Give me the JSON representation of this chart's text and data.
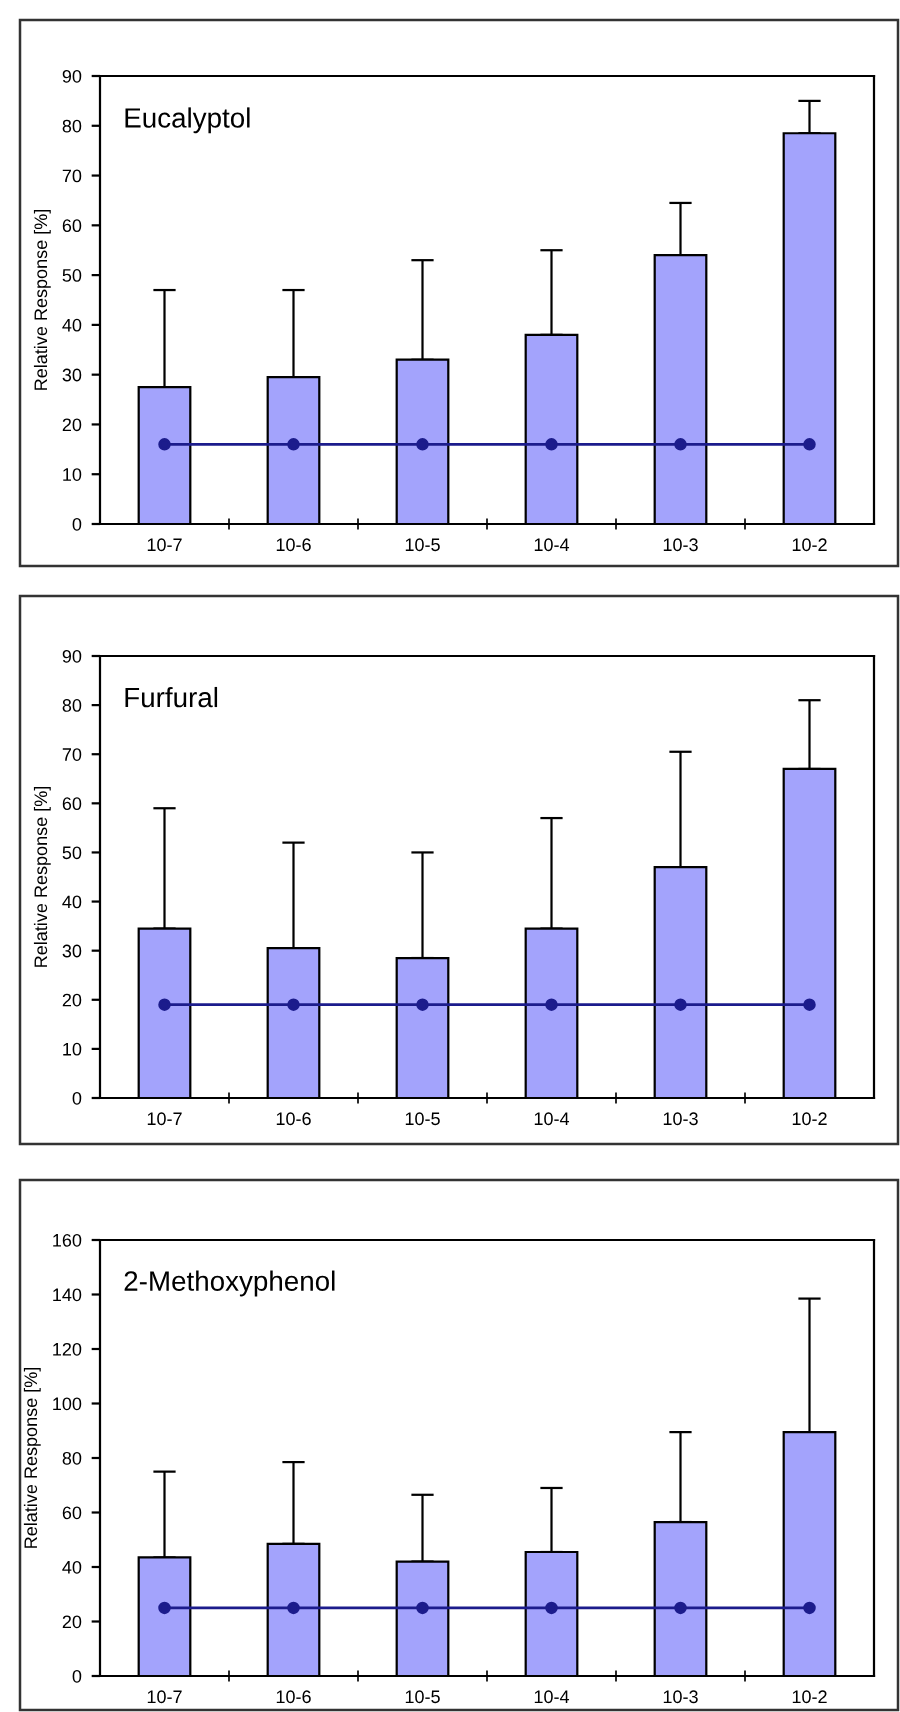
{
  "chart_data": [
    {
      "type": "bar",
      "title": "Eucalyptol",
      "ylabel": "Relative Response [%]",
      "categories": [
        "10-7",
        "10-6",
        "10-5",
        "10-4",
        "10-3",
        "10-2"
      ],
      "ylim": [
        0,
        90
      ],
      "yticks": [
        0,
        10,
        20,
        30,
        40,
        50,
        60,
        70,
        80,
        90
      ],
      "grid": false,
      "legend": false,
      "series": [
        {
          "color": "#a3a3fc",
          "values": [
            27.5,
            29.5,
            33,
            38,
            54,
            78.5
          ],
          "errors": [
            [
              27.5,
              47
            ],
            [
              29.5,
              47
            ],
            [
              33,
              53
            ],
            [
              38,
              55
            ],
            [
              54,
              64.5
            ],
            [
              78.5,
              85
            ]
          ]
        },
        {
          "type": "line",
          "color": "#1c1c8c",
          "marker": "circle",
          "values": [
            16,
            16,
            16,
            16,
            16,
            16
          ]
        }
      ]
    },
    {
      "type": "bar",
      "title": "Furfural",
      "ylabel": "Relative Response [%]",
      "categories": [
        "10-7",
        "10-6",
        "10-5",
        "10-4",
        "10-3",
        "10-2"
      ],
      "ylim": [
        0,
        90
      ],
      "yticks": [
        0,
        10,
        20,
        30,
        40,
        50,
        60,
        70,
        80,
        90
      ],
      "grid": false,
      "legend": false,
      "series": [
        {
          "color": "#a3a3fc",
          "values": [
            34.5,
            30.5,
            28.5,
            34.5,
            47,
            67
          ],
          "errors": [
            [
              34.5,
              59
            ],
            [
              30.5,
              52
            ],
            [
              28.5,
              50
            ],
            [
              34.5,
              57
            ],
            [
              47,
              70.5
            ],
            [
              67,
              81
            ]
          ]
        },
        {
          "type": "line",
          "color": "#1c1c8c",
          "marker": "circle",
          "values": [
            19,
            19,
            19,
            19,
            19,
            19
          ]
        }
      ]
    },
    {
      "type": "bar",
      "title": "2-Methoxyphenol",
      "ylabel": "Relative Response [%]",
      "categories": [
        "10-7",
        "10-6",
        "10-5",
        "10-4",
        "10-3",
        "10-2"
      ],
      "ylim": [
        0,
        160
      ],
      "yticks": [
        0,
        20,
        40,
        60,
        80,
        100,
        120,
        140,
        160
      ],
      "grid": false,
      "legend": false,
      "series": [
        {
          "color": "#a3a3fc",
          "values": [
            43.5,
            48.5,
            42,
            45.5,
            56.5,
            89.5
          ],
          "errors": [
            [
              43.5,
              75
            ],
            [
              48.5,
              78.5
            ],
            [
              42,
              66.5
            ],
            [
              45.5,
              69
            ],
            [
              56.5,
              89.5
            ],
            [
              89.5,
              138.5
            ]
          ]
        },
        {
          "type": "line",
          "color": "#1c1c8c",
          "marker": "circle",
          "values": [
            25,
            25,
            25,
            25,
            25,
            25
          ]
        }
      ]
    }
  ]
}
